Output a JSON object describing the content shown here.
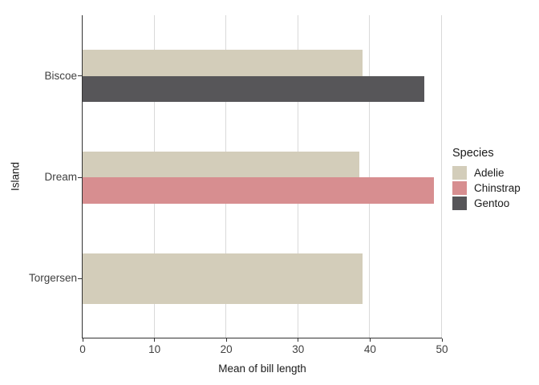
{
  "chart_data": {
    "type": "bar",
    "orientation": "horizontal",
    "xlabel": "Mean of bill length",
    "ylabel": "Island",
    "categories": [
      "Biscoe",
      "Dream",
      "Torgersen"
    ],
    "series": [
      {
        "name": "Adelie",
        "color": "#d3cdba",
        "values": [
          38.98,
          38.5,
          38.95
        ]
      },
      {
        "name": "Chinstrap",
        "color": "#d78e90",
        "values": [
          null,
          48.83,
          null
        ]
      },
      {
        "name": "Gentoo",
        "color": "#575659",
        "values": [
          47.5,
          null,
          null
        ]
      }
    ],
    "x_ticks": [
      0,
      10,
      20,
      30,
      40,
      50
    ],
    "xlim": [
      0,
      50
    ],
    "legend": {
      "title": "Species",
      "position": "right"
    },
    "grid": "vertical-only",
    "style": {
      "axis_line_color": "#333333",
      "gridline_color": "#d9d9d9",
      "tick_label_color": "#404040",
      "title_color": "#1a1a1a",
      "background": "#ffffff"
    }
  }
}
